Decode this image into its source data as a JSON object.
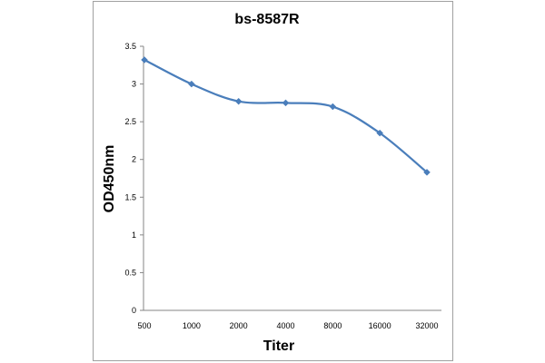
{
  "chart_data": {
    "type": "line",
    "title": "bs-8587R",
    "xlabel": "Titer",
    "ylabel": "OD450nm",
    "categories": [
      "500",
      "1000",
      "2000",
      "4000",
      "8000",
      "16000",
      "32000"
    ],
    "series": [
      {
        "values": [
          3.32,
          3.0,
          2.77,
          2.75,
          2.7,
          2.35,
          1.83
        ]
      }
    ],
    "ylim": [
      0,
      3.5
    ],
    "yticks": [
      "0",
      "0.5",
      "1",
      "1.5",
      "2",
      "2.5",
      "3",
      "3.5"
    ],
    "grid": false,
    "legend": "none",
    "line_color": "#4a7ebb"
  }
}
